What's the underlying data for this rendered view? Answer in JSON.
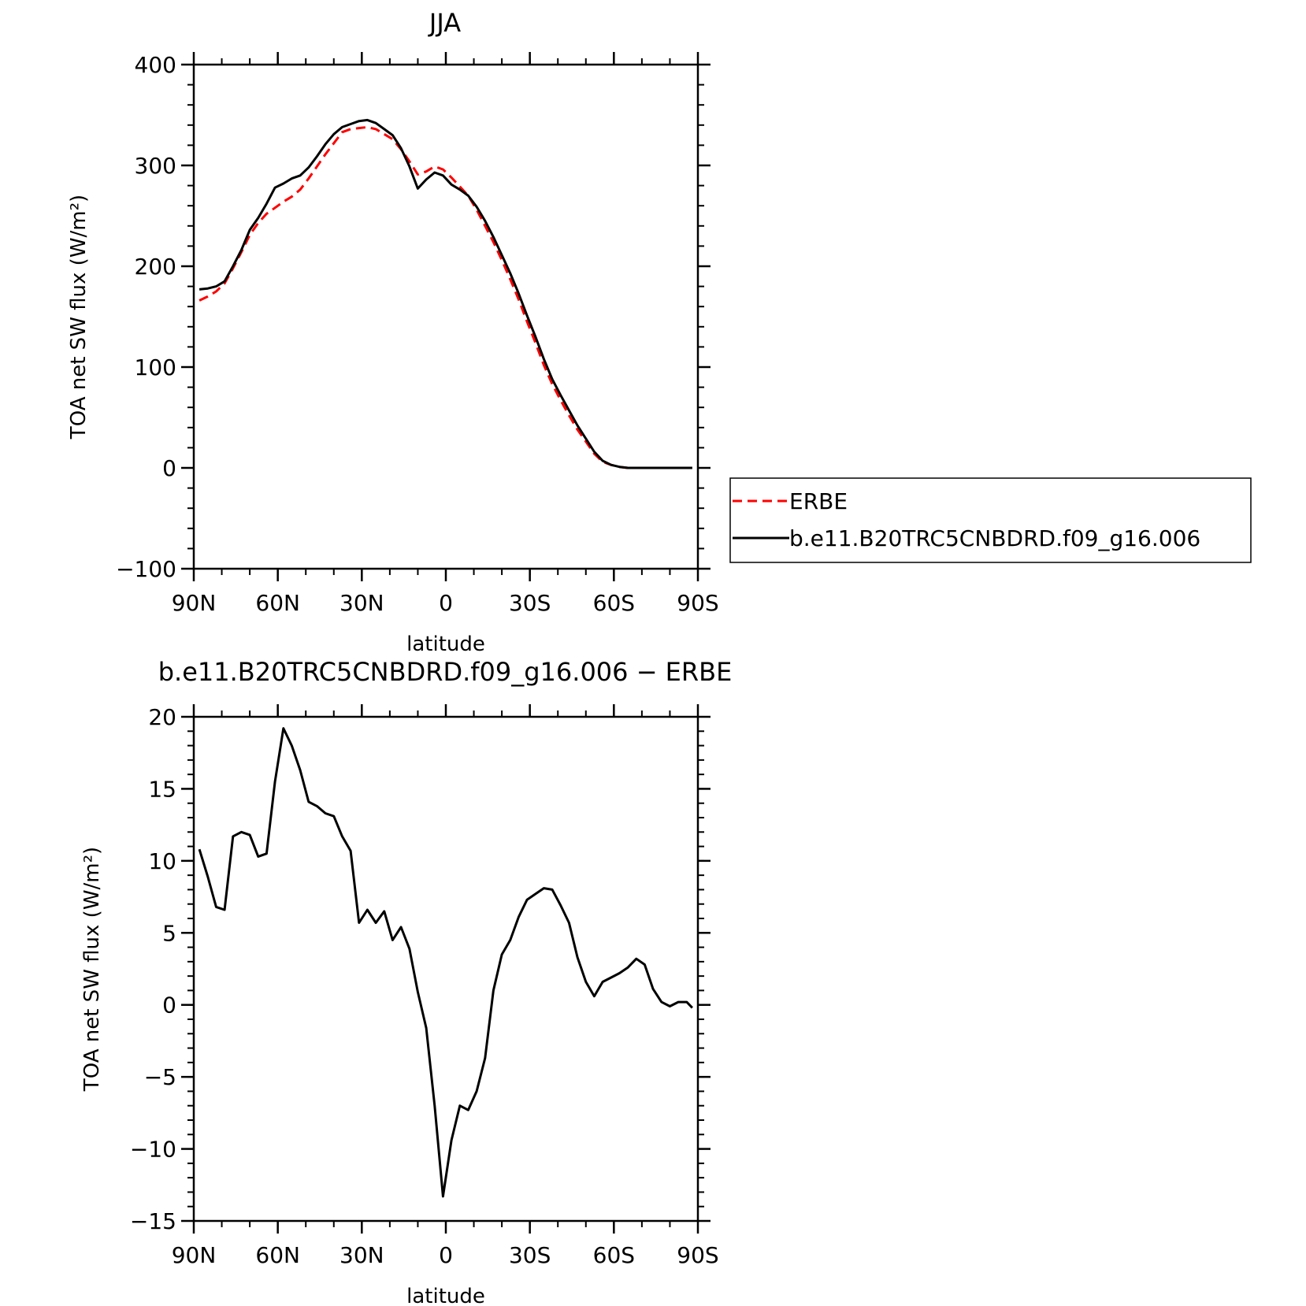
{
  "chart_data": [
    {
      "type": "line",
      "title": "JJA",
      "xlabel": "latitude",
      "ylabel": "TOA net SW flux (W/m²)",
      "ylim": [
        -100,
        400
      ],
      "yticks": [
        "400",
        "300",
        "200",
        "100",
        "0",
        "−100"
      ],
      "ytick_values": [
        400,
        300,
        200,
        100,
        0,
        -100
      ],
      "xlim": [
        90,
        -90
      ],
      "xticks": [
        "90N",
        "60N",
        "30N",
        "0",
        "30S",
        "60S",
        "90S"
      ],
      "xtick_values": [
        90,
        60,
        30,
        0,
        -30,
        -60,
        -90
      ],
      "legend_position": "right",
      "x": [
        88,
        85,
        82,
        79,
        76,
        73,
        70,
        67,
        64,
        61,
        58,
        55,
        52,
        49,
        46,
        43,
        40,
        37,
        34,
        31,
        28,
        25,
        22,
        19,
        16,
        13,
        10,
        7,
        4,
        1,
        -2,
        -5,
        -8,
        -11,
        -14,
        -17,
        -20,
        -23,
        -26,
        -29,
        -32,
        -35,
        -38,
        -41,
        -44,
        -47,
        -50,
        -53,
        -56,
        -59,
        -62,
        -65,
        -68,
        -71,
        -74,
        -77,
        -80,
        -83,
        -86,
        -88
      ],
      "series": [
        {
          "name": "ERBE",
          "color": "#ff0000",
          "dash": true,
          "values": [
            166,
            170,
            175,
            183,
            198,
            214,
            231,
            243,
            252,
            258,
            264,
            269,
            276,
            287,
            299,
            311,
            322,
            333,
            336,
            337,
            338,
            336,
            331,
            326,
            316,
            304,
            291,
            294,
            299,
            296,
            288,
            279,
            270,
            256,
            240,
            224,
            206,
            187,
            167,
            145,
            124,
            102,
            83,
            67,
            52,
            38,
            26,
            14,
            6,
            3,
            1,
            0,
            0,
            0,
            0,
            0,
            0,
            0,
            0,
            0
          ]
        },
        {
          "name": "b.e11.B20TRC5CNBDRD.f09_g16.006",
          "color": "#000000",
          "dash": false,
          "values": [
            177,
            178,
            180,
            185,
            200,
            216,
            236,
            248,
            262,
            278,
            282,
            287,
            290,
            298,
            309,
            321,
            331,
            338,
            341,
            344,
            345,
            342,
            336,
            330,
            317,
            299,
            277,
            286,
            293,
            290,
            281,
            276,
            270,
            259,
            245,
            229,
            211,
            193,
            173,
            151,
            130,
            108,
            88,
            72,
            57,
            42,
            29,
            16,
            7,
            3,
            1,
            0,
            0,
            0,
            0,
            0,
            0,
            0,
            0,
            0
          ]
        }
      ]
    },
    {
      "type": "line",
      "title": "b.e11.B20TRC5CNBDRD.f09_g16.006 − ERBE",
      "xlabel": "latitude",
      "ylabel": "TOA net SW flux (W/m²)",
      "ylim": [
        -15,
        20
      ],
      "yticks": [
        "20",
        "15",
        "10",
        "5",
        "0",
        "−5",
        "−10",
        "−15"
      ],
      "ytick_values": [
        20,
        15,
        10,
        5,
        0,
        -5,
        -10,
        -15
      ],
      "xlim": [
        90,
        -90
      ],
      "xticks": [
        "90N",
        "60N",
        "30N",
        "0",
        "30S",
        "60S",
        "90S"
      ],
      "xtick_values": [
        90,
        60,
        30,
        0,
        -30,
        -60,
        -90
      ],
      "x": [
        88,
        85,
        82,
        79,
        76,
        73,
        70,
        67,
        64,
        61,
        58,
        55,
        52,
        49,
        46,
        43,
        40,
        37,
        34,
        31,
        28,
        25,
        22,
        19,
        16,
        13,
        10,
        7,
        4,
        1,
        -2,
        -5,
        -8,
        -11,
        -14,
        -17,
        -20,
        -23,
        -26,
        -29,
        -32,
        -35,
        -38,
        -41,
        -44,
        -47,
        -50,
        -53,
        -56,
        -59,
        -62,
        -65,
        -68,
        -71,
        -74,
        -77,
        -80,
        -83,
        -86,
        -88
      ],
      "series": [
        {
          "color": "#000000",
          "values": [
            10.8,
            8.9,
            6.8,
            6.6,
            11.7,
            12.0,
            11.8,
            10.3,
            10.5,
            15.5,
            19.2,
            18.0,
            16.3,
            14.1,
            13.8,
            13.3,
            13.1,
            11.7,
            10.7,
            5.7,
            6.6,
            5.7,
            6.5,
            4.5,
            5.4,
            3.9,
            0.9,
            -1.6,
            -7.0,
            -13.3,
            -9.4,
            -7.0,
            -7.3,
            -6.0,
            -3.7,
            1.0,
            3.5,
            4.5,
            6.1,
            7.3,
            7.7,
            8.1,
            8.0,
            6.9,
            5.7,
            3.3,
            1.6,
            0.6,
            1.6,
            1.9,
            2.2,
            2.6,
            3.2,
            2.8,
            1.1,
            0.2,
            -0.1,
            0.2,
            0.2,
            -0.2
          ]
        }
      ]
    }
  ]
}
